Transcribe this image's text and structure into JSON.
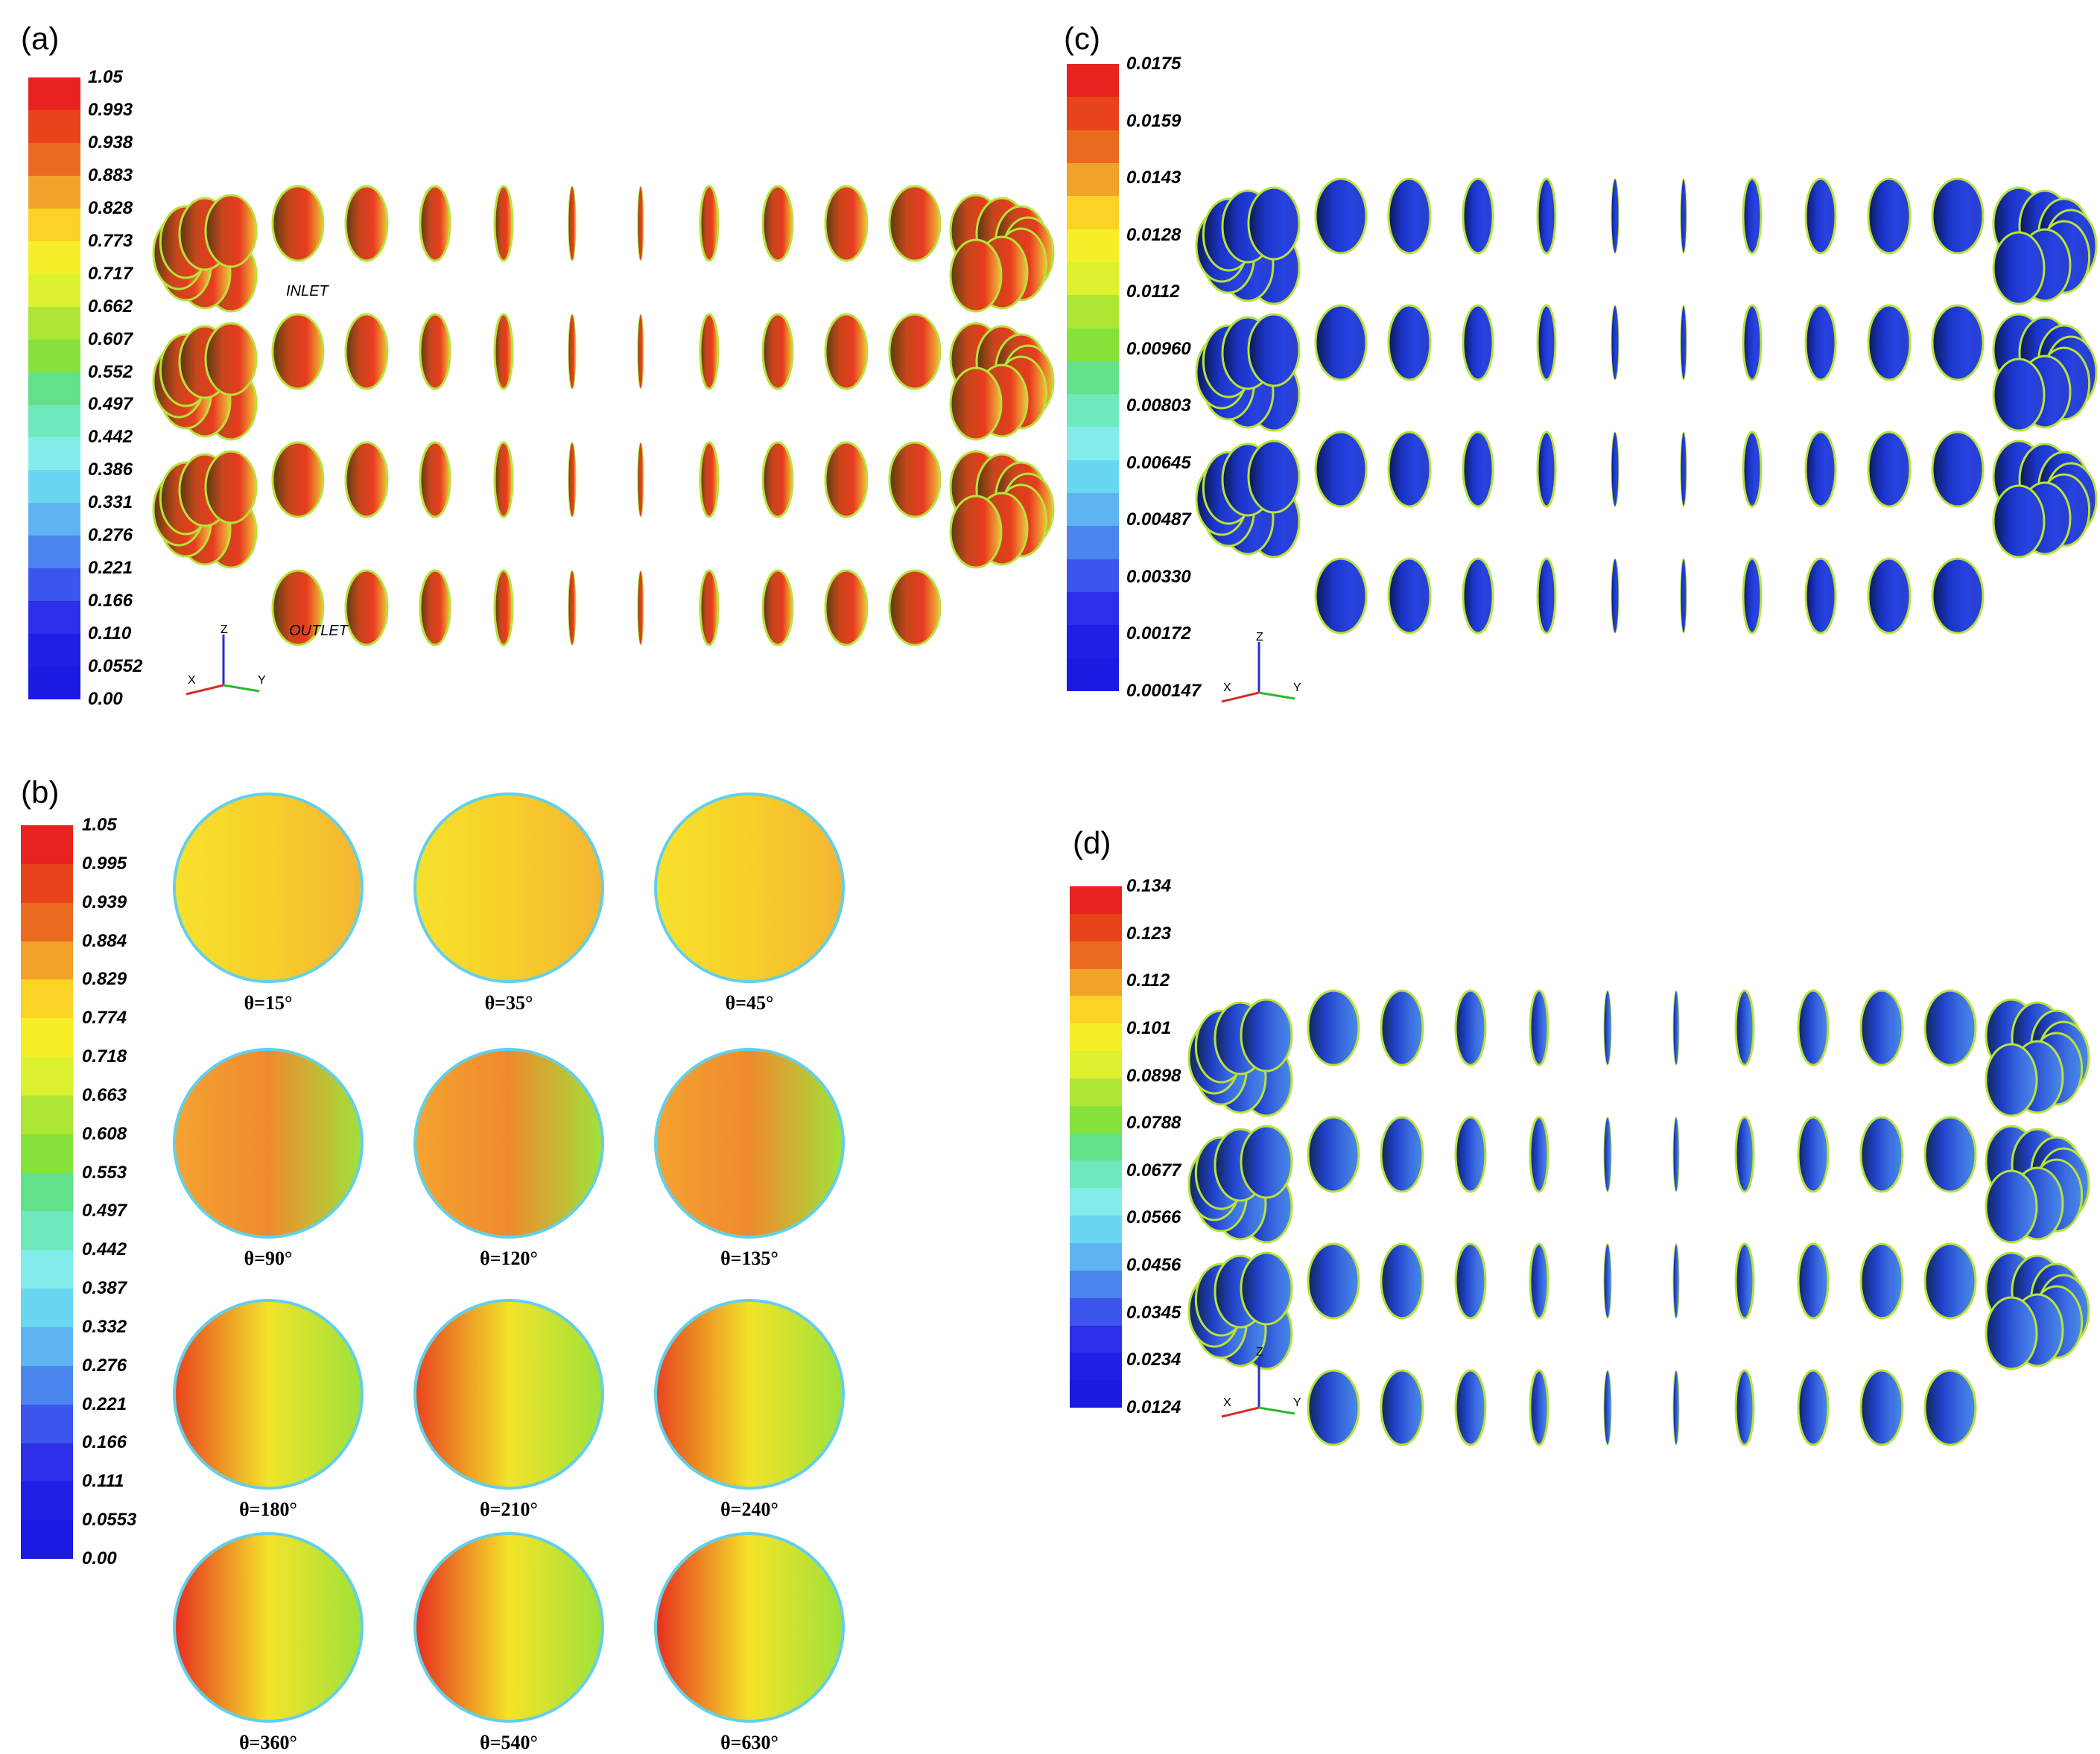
{
  "panels": {
    "a": {
      "label": "(a)",
      "ticks": [
        "1.05",
        "0.993",
        "0.938",
        "0.883",
        "0.828",
        "0.773",
        "0.717",
        "0.662",
        "0.607",
        "0.552",
        "0.497",
        "0.442",
        "0.386",
        "0.331",
        "0.276",
        "0.221",
        "0.166",
        "0.110",
        "0.0552",
        "0.00"
      ],
      "inlet": "INLET",
      "outlet": "OUTLET",
      "axes": {
        "x": "X",
        "y": "Y",
        "z": "Z"
      }
    },
    "b": {
      "label": "(b)",
      "ticks": [
        "1.05",
        "0.995",
        "0.939",
        "0.884",
        "0.829",
        "0.774",
        "0.718",
        "0.663",
        "0.608",
        "0.553",
        "0.497",
        "0.442",
        "0.387",
        "0.332",
        "0.276",
        "0.221",
        "0.166",
        "0.111",
        "0.0553",
        "0.00"
      ],
      "angles": [
        "θ=15°",
        "θ=35°",
        "θ=45°",
        "θ=90°",
        "θ=120°",
        "θ=135°",
        "θ=180°",
        "θ=210°",
        "θ=240°",
        "θ=360°",
        "θ=540°",
        "θ=630°"
      ]
    },
    "c": {
      "label": "(c)",
      "ticks": [
        "0.0175",
        "0.0159",
        "0.0143",
        "0.0128",
        "0.0112",
        "0.00960",
        "0.00803",
        "0.00645",
        "0.00487",
        "0.00330",
        "0.00172",
        "0.000147"
      ],
      "axes": {
        "x": "X",
        "y": "Y",
        "z": "Z"
      }
    },
    "d": {
      "label": "(d)",
      "ticks": [
        "0.134",
        "0.123",
        "0.112",
        "0.101",
        "0.0898",
        "0.0788",
        "0.0677",
        "0.0566",
        "0.0456",
        "0.0345",
        "0.0234",
        "0.0124"
      ],
      "axes": {
        "x": "X",
        "y": "Y",
        "z": "Z"
      }
    }
  },
  "colors": [
    "#e8231f",
    "#e9431c",
    "#ea6a1f",
    "#f2a12b",
    "#fbd324",
    "#f7ee2a",
    "#dcf22f",
    "#aee635",
    "#86e23b",
    "#63d84b",
    "#62e08a",
    "#6ee9bb",
    "#83ecea",
    "#6ad7f1",
    "#5eb4f0",
    "#4a86ee",
    "#3c55ec",
    "#2c2ee8",
    "#1f1fe6",
    "#1a1ae3"
  ]
}
